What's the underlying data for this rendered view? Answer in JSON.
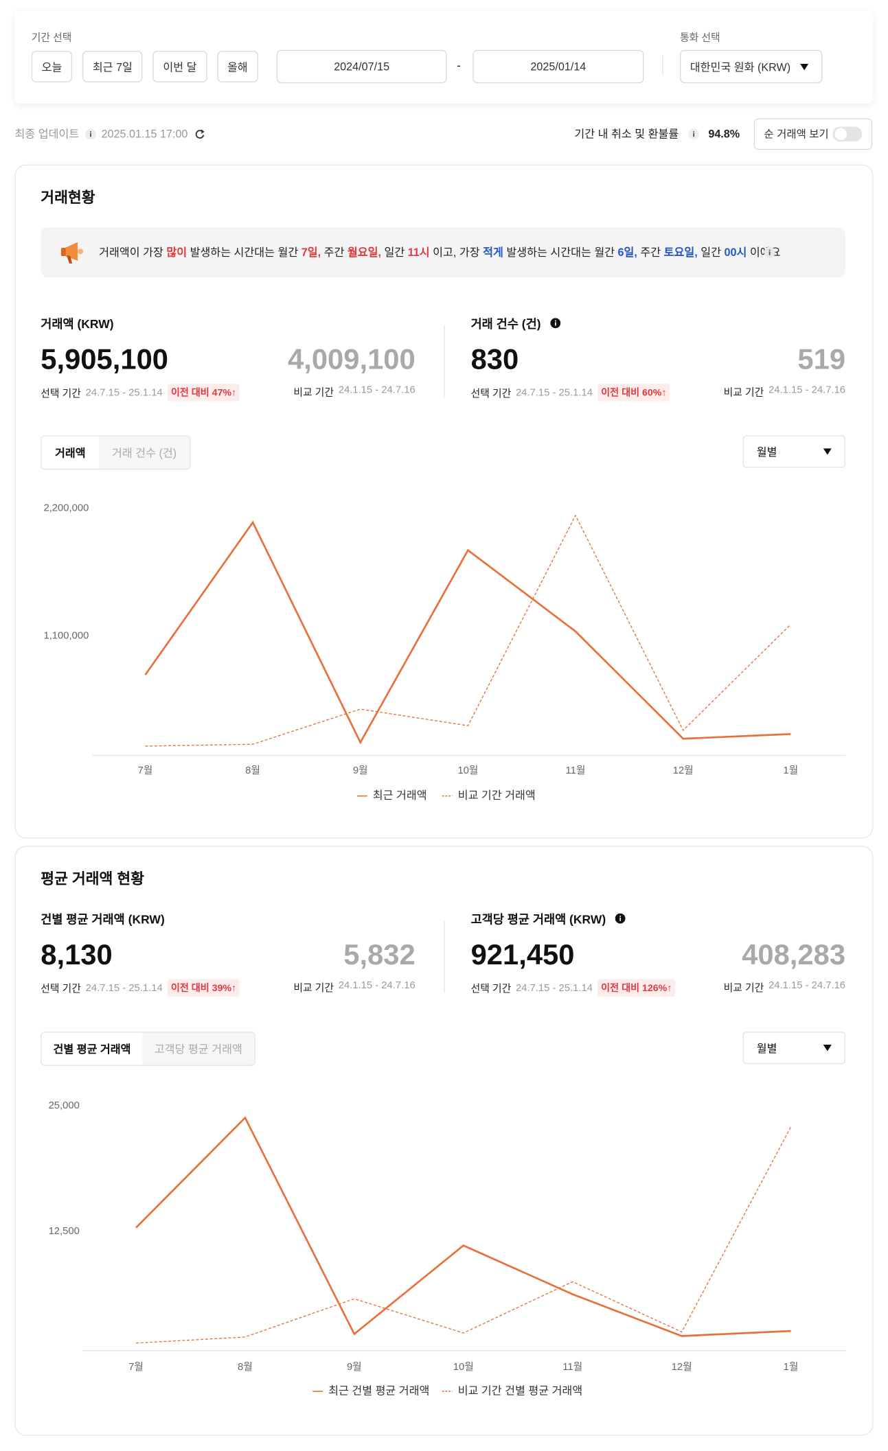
{
  "filter": {
    "period_label": "기간 선택",
    "period_buttons": [
      "오늘",
      "최근 7일",
      "이번 달",
      "올해"
    ],
    "start_date": "2024/07/15",
    "separator": "-",
    "end_date": "2025/01/14",
    "currency_label": "통화 선택",
    "currency": "대한민국 원화 (KRW)"
  },
  "status": {
    "updated_label": "최종 업데이트",
    "updated_at": "2025.01.15 17:00",
    "cancel_label": "기간 내 취소 및 환불률",
    "cancel_rate": "94.8%",
    "net_toggle": "순 거래액 보기"
  },
  "sections": [
    {
      "title": "거래현황",
      "banner": [
        {
          "text": "거래액이 가장 "
        },
        {
          "text": "많이",
          "color": "#e0393e"
        },
        {
          "text": " 발생하는 시간대는 월간 "
        },
        {
          "text": "7일,",
          "color": "#e0393e"
        },
        {
          "text": " 주간 "
        },
        {
          "text": "월요일,",
          "color": "#e0393e"
        },
        {
          "text": " 일간 "
        },
        {
          "text": "11시",
          "color": "#e0393e"
        },
        {
          "text": " 이고, 가장 "
        },
        {
          "text": "적게",
          "color": "#2456c9"
        },
        {
          "text": " 발생하는 시간대는 월간 "
        },
        {
          "text": "6일,",
          "color": "#2456c9"
        },
        {
          "text": " 주간 "
        },
        {
          "text": "토요일,",
          "color": "#2456c9"
        },
        {
          "text": " 일간 "
        },
        {
          "text": "00시",
          "color": "#2456c9"
        },
        {
          "text": " 이에요"
        }
      ],
      "metrics": [
        {
          "label": "거래액 (KRW)",
          "info_icon": false,
          "value": "5,905,100",
          "selected_label": "선택 기간",
          "selected_range": "24.7.15 - 25.1.14",
          "change": "이전 대비 47%↑",
          "compare_value": "4,009,100",
          "compare_label": "비교 기간",
          "compare_range": "24.1.15 - 24.7.16"
        },
        {
          "label": "거래 건수 (건)",
          "info_icon": true,
          "value": "830",
          "selected_label": "선택 기간",
          "selected_range": "24.7.15 - 25.1.14",
          "change": "이전 대비 60%↑",
          "compare_value": "519",
          "compare_label": "비교 기간",
          "compare_range": "24.1.15 - 24.7.16"
        }
      ],
      "tabs": [
        "거래액",
        "거래 건수 (건)"
      ],
      "active_tab": 0,
      "dropdown": "월별"
    },
    {
      "title": "평균 거래액 현황",
      "metrics": [
        {
          "label": "건별 평균 거래액 (KRW)",
          "info_icon": false,
          "value": "8,130",
          "selected_label": "선택 기간",
          "selected_range": "24.7.15 - 25.1.14",
          "change": "이전 대비 39%↑",
          "compare_value": "5,832",
          "compare_label": "비교 기간",
          "compare_range": "24.1.15 - 24.7.16"
        },
        {
          "label": "고객당 평균 거래액 (KRW)",
          "info_icon": true,
          "value": "921,450",
          "selected_label": "선택 기간",
          "selected_range": "24.7.15 - 25.1.14",
          "change": "이전 대비 126%↑",
          "compare_value": "408,283",
          "compare_label": "비교 기간",
          "compare_range": "24.1.15 - 24.7.16"
        }
      ],
      "tabs": [
        "건별 평균 거래액",
        "고객당 평균 거래액"
      ],
      "active_tab": 0,
      "dropdown": "월별"
    }
  ],
  "chart_data": [
    {
      "type": "line",
      "categories": [
        "7월",
        "8월",
        "9월",
        "10월",
        "11월",
        "12월",
        "1월"
      ],
      "ylim": [
        0,
        2200000
      ],
      "yticks": [
        {
          "value": 1100000,
          "label": "1,100,000"
        },
        {
          "value": 2200000,
          "label": "2,200,000"
        }
      ],
      "grid": false,
      "series": [
        {
          "name": "최근 거래액",
          "color": "#e8703a",
          "line_style": "solid",
          "values": [
            765000,
            2080000,
            183000,
            1840000,
            1140000,
            215000,
            255000
          ]
        },
        {
          "name": "비교 기간 거래액",
          "color": "#e8703a",
          "line_style": "dashed",
          "values": [
            151000,
            167000,
            470000,
            327000,
            2140000,
            287000,
            1200000
          ]
        }
      ]
    },
    {
      "type": "line",
      "categories": [
        "7월",
        "8월",
        "9월",
        "10월",
        "11월",
        "12월",
        "1월"
      ],
      "ylim": [
        0,
        25000
      ],
      "yticks": [
        {
          "value": 12500,
          "label": "12,500"
        },
        {
          "value": 25000,
          "label": "25,000"
        }
      ],
      "grid": false,
      "series": [
        {
          "name": "최근 건별 평균 거래액",
          "color": "#e8703a",
          "line_style": "solid",
          "values": [
            12870,
            23800,
            2300,
            11100,
            6250,
            2100,
            2600
          ]
        },
        {
          "name": "비교 기간 건별 평균 거래액",
          "color": "#e8703a",
          "line_style": "dashed",
          "values": [
            1400,
            2000,
            5800,
            2400,
            7500,
            2500,
            22900
          ]
        }
      ]
    }
  ]
}
